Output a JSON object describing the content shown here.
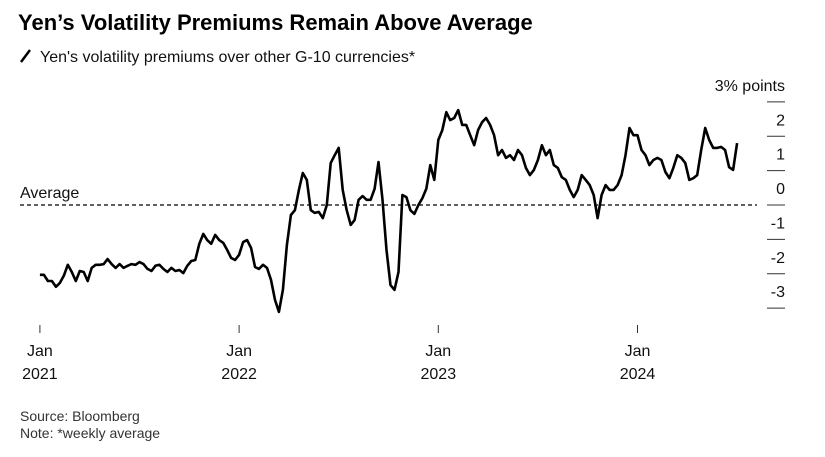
{
  "chart_data": {
    "type": "line",
    "title": "Yen’s Volatility Premiums Remain Above Average",
    "subtitle": "Yen's volatility premiums over other G-10 currencies*",
    "source": "Source: Bloomberg",
    "note": "Note: *weekly average",
    "average_line": {
      "label": "Average",
      "value": 0
    },
    "xlim": [
      2020.9,
      2024.6
    ],
    "xticks": [
      {
        "value": 2021,
        "label": "Jan 2021"
      },
      {
        "value": 2022,
        "label": "Jan 2022"
      },
      {
        "value": 2023,
        "label": "Jan 2023"
      },
      {
        "value": 2024,
        "label": "Jan 2024"
      }
    ],
    "ylim": [
      -3.2,
      3.2
    ],
    "yticks": [
      {
        "value": 3,
        "label": "3% points"
      },
      2,
      1,
      0,
      -1,
      -2,
      -3
    ],
    "x": [
      2021.0,
      2021.02,
      2021.04,
      2021.06,
      2021.08,
      2021.1,
      2021.12,
      2021.14,
      2021.16,
      2021.18,
      2021.2,
      2021.22,
      2021.24,
      2021.26,
      2021.28,
      2021.3,
      2021.32,
      2021.34,
      2021.36,
      2021.38,
      2021.4,
      2021.42,
      2021.44,
      2021.46,
      2021.48,
      2021.5,
      2021.52,
      2021.54,
      2021.56,
      2021.58,
      2021.6,
      2021.62,
      2021.64,
      2021.66,
      2021.68,
      2021.7,
      2021.72,
      2021.74,
      2021.76,
      2021.78,
      2021.8,
      2021.82,
      2021.84,
      2021.86,
      2021.88,
      2021.9,
      2021.92,
      2021.94,
      2021.96,
      2021.98,
      2022.0,
      2022.02,
      2022.04,
      2022.06,
      2022.08,
      2022.1,
      2022.12,
      2022.14,
      2022.16,
      2022.18,
      2022.2,
      2022.22,
      2022.24,
      2022.26,
      2022.28,
      2022.3,
      2022.32,
      2022.34,
      2022.36,
      2022.38,
      2022.4,
      2022.42,
      2022.44,
      2022.46,
      2022.48,
      2022.5,
      2022.52,
      2022.54,
      2022.56,
      2022.58,
      2022.6,
      2022.62,
      2022.64,
      2022.66,
      2022.68,
      2022.7,
      2022.72,
      2022.74,
      2022.76,
      2022.78,
      2022.8,
      2022.82,
      2022.84,
      2022.86,
      2022.88,
      2022.9,
      2022.92,
      2022.94,
      2022.96,
      2022.98,
      2023.0,
      2023.02,
      2023.04,
      2023.06,
      2023.08,
      2023.1,
      2023.12,
      2023.14,
      2023.16,
      2023.18,
      2023.2,
      2023.22,
      2023.24,
      2023.26,
      2023.28,
      2023.3,
      2023.32,
      2023.34,
      2023.36,
      2023.38,
      2023.4,
      2023.42,
      2023.44,
      2023.46,
      2023.48,
      2023.5,
      2023.52,
      2023.54,
      2023.56,
      2023.58,
      2023.6,
      2023.62,
      2023.64,
      2023.66,
      2023.68,
      2023.7,
      2023.72,
      2023.74,
      2023.76,
      2023.78,
      2023.8,
      2023.82,
      2023.84,
      2023.86,
      2023.88,
      2023.9,
      2023.92,
      2023.94,
      2023.96,
      2023.98,
      2024.0,
      2024.02,
      2024.04,
      2024.06,
      2024.08,
      2024.1,
      2024.12,
      2024.14,
      2024.16,
      2024.18,
      2024.2,
      2024.22,
      2024.24,
      2024.26,
      2024.28,
      2024.3,
      2024.32,
      2024.34,
      2024.36,
      2024.38,
      2024.4,
      2024.42,
      2024.44,
      2024.46,
      2024.48,
      2024.5
    ],
    "series": [
      {
        "color": "#000000",
        "values": [
          -2.03,
          -2.03,
          -2.21,
          -2.21,
          -2.38,
          -2.27,
          -2.06,
          -1.74,
          -1.95,
          -2.21,
          -1.92,
          -1.95,
          -2.21,
          -1.83,
          -1.74,
          -1.74,
          -1.72,
          -1.57,
          -1.72,
          -1.83,
          -1.72,
          -1.83,
          -1.77,
          -1.72,
          -1.74,
          -1.66,
          -1.72,
          -1.86,
          -1.92,
          -1.77,
          -1.74,
          -1.86,
          -1.95,
          -1.83,
          -1.92,
          -1.89,
          -1.98,
          -1.77,
          -1.63,
          -1.6,
          -1.13,
          -0.84,
          -1.02,
          -1.13,
          -0.87,
          -1.02,
          -1.1,
          -1.31,
          -1.54,
          -1.6,
          -1.45,
          -1.08,
          -1.02,
          -1.25,
          -1.8,
          -1.86,
          -1.74,
          -1.83,
          -2.18,
          -2.76,
          -3.11,
          -2.47,
          -1.16,
          -0.29,
          -0.15,
          0.44,
          0.93,
          0.73,
          -0.15,
          -0.23,
          -0.2,
          -0.38,
          0,
          1.22,
          1.45,
          1.66,
          0.44,
          -0.15,
          -0.58,
          -0.44,
          0.15,
          0.26,
          0.15,
          0.15,
          0.47,
          1.25,
          0.15,
          -1.31,
          -2.33,
          -2.47,
          -1.95,
          0.29,
          0.23,
          -0.15,
          -0.26,
          0,
          0.2,
          0.47,
          1.16,
          0.73,
          1.89,
          2.18,
          2.7,
          2.47,
          2.53,
          2.76,
          2.33,
          2.33,
          2.03,
          1.74,
          2.18,
          2.41,
          2.53,
          2.33,
          2.03,
          1.45,
          1.6,
          1.37,
          1.45,
          1.31,
          1.6,
          1.45,
          1.08,
          0.87,
          1.02,
          1.31,
          1.74,
          1.45,
          1.6,
          1.16,
          1.08,
          0.81,
          0.73,
          0.44,
          0.23,
          0.44,
          0.87,
          0.73,
          0.58,
          0.29,
          -0.38,
          0.29,
          0.58,
          0.44,
          0.44,
          0.58,
          0.87,
          1.45,
          2.24,
          2.03,
          2.03,
          1.6,
          1.45,
          1.16,
          1.31,
          1.37,
          1.31,
          0.96,
          0.78,
          1.08,
          1.45,
          1.37,
          1.22,
          0.73,
          0.78,
          0.87,
          1.6,
          2.24,
          1.89,
          1.66,
          1.66,
          1.69,
          1.6,
          1.1,
          1.02,
          1.8
        ]
      }
    ]
  }
}
